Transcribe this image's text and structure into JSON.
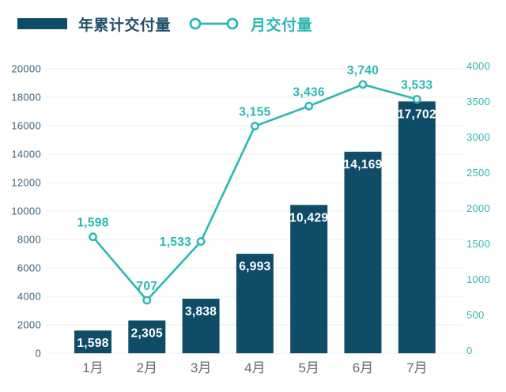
{
  "legend": {
    "bar_label": "年累计交付量",
    "line_label": "月交付量"
  },
  "colors": {
    "bar_fill": "#0f4c67",
    "line_teal": "#2bb7b3",
    "left_axis_text": "#3a627a",
    "right_axis_text": "#2bb7b3",
    "x_axis_text": "#6b6b6b",
    "gridline": "#ececec",
    "bar_value_text": "#ffffff",
    "legend_bar_text": "#234f68",
    "background": "#ffffff"
  },
  "chart_data": {
    "type": "bar",
    "subtype": "combo-bar-line-dual-axis",
    "categories": [
      "1月",
      "2月",
      "3月",
      "4月",
      "5月",
      "6月",
      "7月"
    ],
    "series": [
      {
        "name": "年累计交付量",
        "type": "bar",
        "axis": "left",
        "values": [
          1598,
          2305,
          3838,
          6993,
          10429,
          14169,
          17702
        ],
        "labels": [
          "1,598",
          "2,305",
          "3,838",
          "6,993",
          "10,429",
          "14,169",
          "17,702"
        ]
      },
      {
        "name": "月交付量",
        "type": "line",
        "axis": "right",
        "values": [
          1598,
          707,
          1533,
          3155,
          3436,
          3740,
          3533
        ],
        "labels": [
          "1,598",
          "707",
          "1,533",
          "3,155",
          "3,436",
          "3,740",
          "3,533"
        ],
        "label_anchor": [
          "top",
          "top",
          "left",
          "top",
          "top",
          "top",
          "top"
        ]
      }
    ],
    "left_axis": {
      "min": 0,
      "max": 20000,
      "step": 2000,
      "ticks": [
        "0",
        "2000",
        "4000",
        "6000",
        "8000",
        "10000",
        "12000",
        "14000",
        "16000",
        "18000",
        "20000"
      ]
    },
    "right_axis": {
      "min": 0,
      "max": 4000,
      "step": 500,
      "ticks": [
        "0",
        "500",
        "1000",
        "1500",
        "2000",
        "2500",
        "3000",
        "3500",
        "4000"
      ]
    },
    "grid": true,
    "legend_position": "top-left",
    "marker_style": "open-circle"
  }
}
